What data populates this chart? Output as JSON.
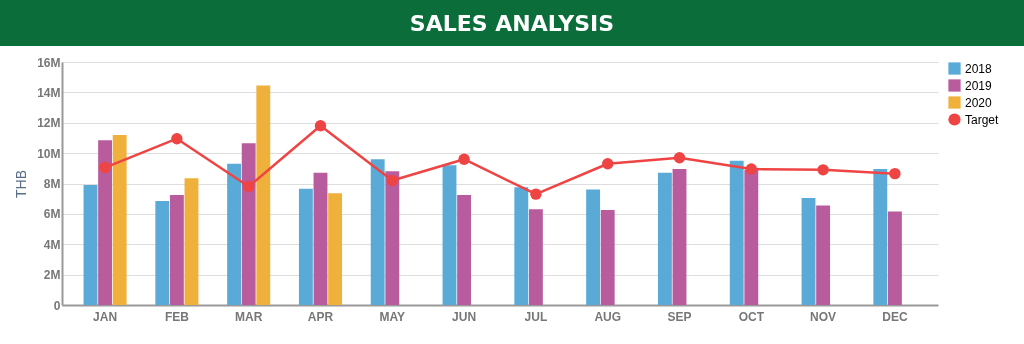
{
  "chart_data": {
    "type": "bar",
    "title": "SALES ANALYSIS",
    "ylabel": "THB",
    "categories": [
      "JAN",
      "FEB",
      "MAR",
      "APR",
      "MAY",
      "JUN",
      "JUL",
      "AUG",
      "SEP",
      "OCT",
      "NOV",
      "DEC"
    ],
    "series": [
      {
        "name": "2018",
        "color": "#5aaad8",
        "values": [
          7.9,
          6.85,
          9.3,
          7.65,
          9.6,
          9.2,
          7.75,
          7.6,
          8.7,
          9.5,
          7.05,
          8.95
        ]
      },
      {
        "name": "2019",
        "color": "#b85c9e",
        "values": [
          10.85,
          7.25,
          10.65,
          8.7,
          8.8,
          7.25,
          6.3,
          6.25,
          8.95,
          8.9,
          6.55,
          6.15
        ]
      },
      {
        "name": "2020",
        "color": "#f0b03c",
        "values": [
          11.2,
          8.35,
          14.45,
          7.35,
          null,
          null,
          null,
          null,
          null,
          null,
          null,
          null
        ]
      },
      {
        "name": "Target",
        "type": "line",
        "color": "#ef4444",
        "values": [
          9.05,
          10.95,
          7.8,
          11.8,
          8.2,
          9.6,
          7.3,
          9.3,
          9.7,
          8.95,
          8.9,
          8.65
        ]
      }
    ],
    "ylim": [
      0,
      16
    ],
    "yticks": [
      {
        "value": 0,
        "label": "0"
      },
      {
        "value": 2,
        "label": "2M"
      },
      {
        "value": 4,
        "label": "4M"
      },
      {
        "value": 6,
        "label": "6M"
      },
      {
        "value": 8,
        "label": "8M"
      },
      {
        "value": 10,
        "label": "10M"
      },
      {
        "value": 12,
        "label": "12M"
      },
      {
        "value": 14,
        "label": "14M"
      },
      {
        "value": 16,
        "label": "16M"
      }
    ],
    "grid": "y",
    "legend": "right",
    "marker": "circle",
    "line_style": "solid"
  }
}
